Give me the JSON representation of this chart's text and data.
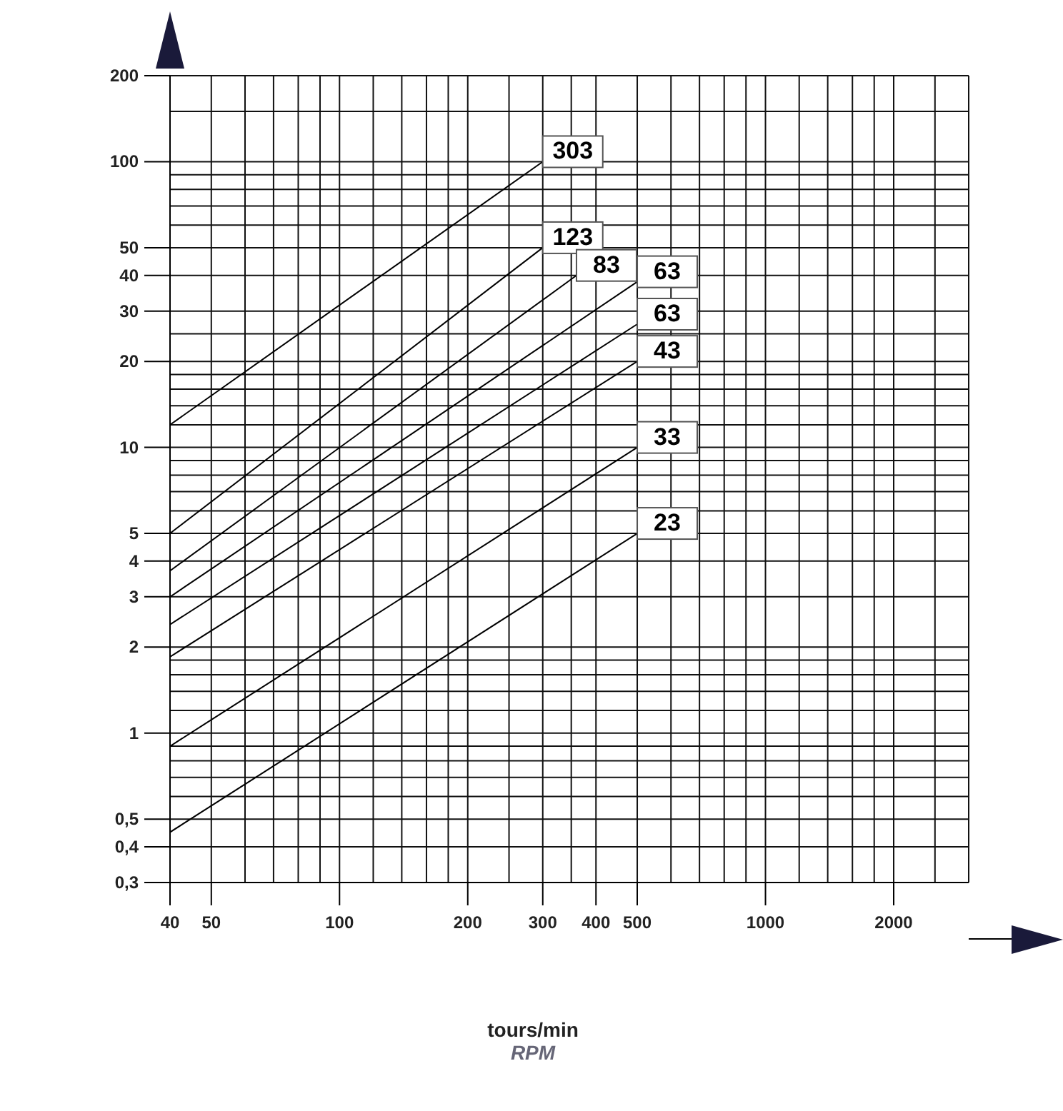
{
  "chart_data": {
    "type": "line",
    "log": "xy",
    "xlabel": "tours/min",
    "annotations": [
      "RPM"
    ],
    "grid": true,
    "legend": false,
    "marker": "none",
    "line_style": "solid",
    "xlim": [
      40,
      3000
    ],
    "ylim": [
      0.3,
      200
    ],
    "xticks": [
      40,
      50,
      {
        "value": 60,
        "label": null
      },
      {
        "value": 70,
        "label": null
      },
      {
        "value": 80,
        "label": null
      },
      {
        "value": 90,
        "label": null
      },
      100,
      {
        "value": 120,
        "label": null
      },
      {
        "value": 140,
        "label": null
      },
      {
        "value": 160,
        "label": null
      },
      {
        "value": 180,
        "label": null
      },
      200,
      {
        "value": 250,
        "label": null
      },
      300,
      {
        "value": 350,
        "label": null
      },
      400,
      500,
      {
        "value": 600,
        "label": null
      },
      {
        "value": 700,
        "label": null
      },
      {
        "value": 800,
        "label": null
      },
      {
        "value": 900,
        "label": null
      },
      1000,
      {
        "value": 1200,
        "label": null
      },
      {
        "value": 1400,
        "label": null
      },
      {
        "value": 1600,
        "label": null
      },
      {
        "value": 1800,
        "label": null
      },
      2000,
      {
        "value": 2500,
        "label": null
      },
      {
        "value": 3000,
        "label": null
      }
    ],
    "yticks": [
      {
        "value": 0.3,
        "label": "0,3"
      },
      {
        "value": 0.4,
        "label": "0,4"
      },
      {
        "value": 0.5,
        "label": "0,5"
      },
      {
        "value": 0.6,
        "label": null
      },
      {
        "value": 0.7,
        "label": null
      },
      {
        "value": 0.8,
        "label": null
      },
      {
        "value": 0.9,
        "label": null
      },
      1,
      {
        "value": 1.2,
        "label": null
      },
      {
        "value": 1.4,
        "label": null
      },
      {
        "value": 1.6,
        "label": null
      },
      {
        "value": 1.8,
        "label": null
      },
      2,
      3,
      4,
      5,
      {
        "value": 6,
        "label": null
      },
      {
        "value": 7,
        "label": null
      },
      {
        "value": 8,
        "label": null
      },
      {
        "value": 9,
        "label": null
      },
      10,
      {
        "value": 12,
        "label": null
      },
      {
        "value": 14,
        "label": null
      },
      {
        "value": 16,
        "label": null
      },
      {
        "value": 18,
        "label": null
      },
      20,
      {
        "value": 25,
        "label": null
      },
      30,
      40,
      50,
      {
        "value": 60,
        "label": null
      },
      {
        "value": 70,
        "label": null
      },
      {
        "value": 80,
        "label": null
      },
      {
        "value": 90,
        "label": null
      },
      100,
      {
        "value": 150,
        "label": null
      },
      200
    ],
    "series": [
      {
        "name": "303",
        "color": "#000000",
        "x": [
          40,
          300
        ],
        "values": [
          12,
          100
        ]
      },
      {
        "name": "123",
        "color": "#000000",
        "x": [
          40,
          300
        ],
        "values": [
          5,
          50
        ]
      },
      {
        "name": "83",
        "color": "#000000",
        "x": [
          40,
          360
        ],
        "values": [
          3.7,
          40
        ]
      },
      {
        "name": "63",
        "color": "#000000",
        "x": [
          40,
          500
        ],
        "values": [
          3,
          38
        ]
      },
      {
        "name": "63",
        "color": "#000000",
        "x": [
          40,
          500
        ],
        "values": [
          2.4,
          27
        ]
      },
      {
        "name": "43",
        "color": "#000000",
        "x": [
          40,
          500
        ],
        "values": [
          1.85,
          20
        ]
      },
      {
        "name": "33",
        "color": "#000000",
        "x": [
          40,
          500
        ],
        "values": [
          0.9,
          10
        ]
      },
      {
        "name": "23",
        "color": "#000000",
        "x": [
          40,
          500
        ],
        "values": [
          0.45,
          5
        ]
      }
    ]
  }
}
